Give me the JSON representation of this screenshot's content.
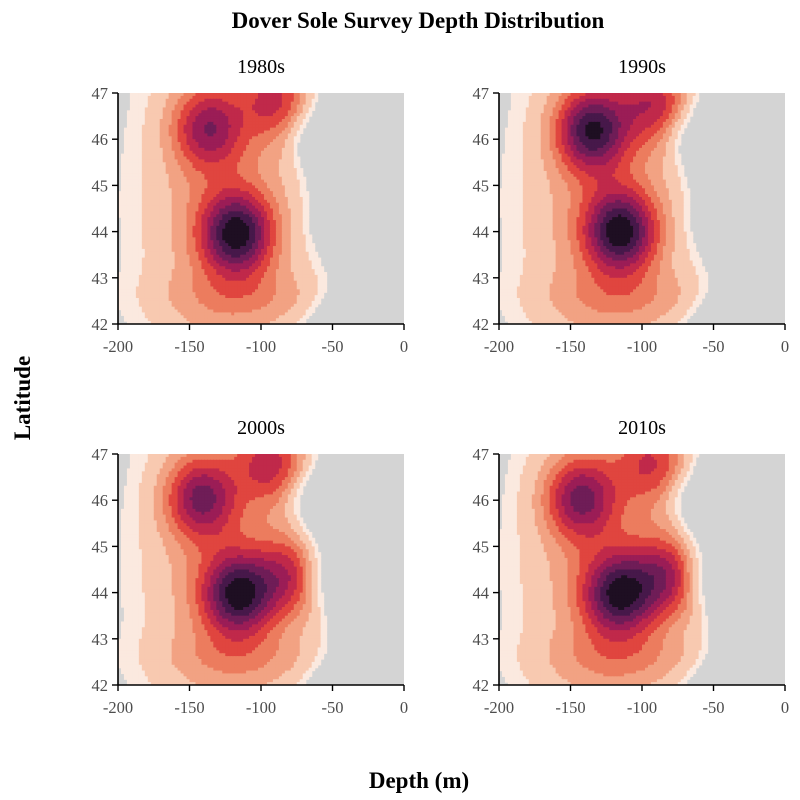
{
  "chart_data": {
    "type": "heatmap",
    "subtype": "filled-contour density",
    "title": "Dover Sole Survey Depth Distribution",
    "xlabel": "Depth (m)",
    "ylabel": "Latitude",
    "xlim": [
      -200,
      0
    ],
    "ylim": [
      42,
      47
    ],
    "xticks": [
      "-200",
      "-150",
      "-100",
      "-50",
      "0"
    ],
    "yticks": [
      "42",
      "43",
      "44",
      "45",
      "46",
      "47"
    ],
    "background_color": "#d4d4d4",
    "contour_levels": 10,
    "colors": [
      "#fbe9df",
      "#f8c9b0",
      "#f2a283",
      "#ec7c5e",
      "#e0453f",
      "#c0294a",
      "#9b1d56",
      "#6f1d57",
      "#47184a",
      "#1e0f22"
    ],
    "panels": [
      {
        "name": "1980s",
        "hotspots": [
          {
            "depth": -117,
            "lat": 43.95,
            "intensity": 1.0
          },
          {
            "depth": -137,
            "lat": 46.25,
            "intensity": 0.65
          },
          {
            "depth": -90,
            "lat": 46.85,
            "intensity": 0.5
          }
        ]
      },
      {
        "name": "1990s",
        "hotspots": [
          {
            "depth": -115,
            "lat": 44.0,
            "intensity": 1.0
          },
          {
            "depth": -135,
            "lat": 46.2,
            "intensity": 0.95
          },
          {
            "depth": -92,
            "lat": 46.8,
            "intensity": 0.55
          }
        ]
      },
      {
        "name": "2000s",
        "hotspots": [
          {
            "depth": -116,
            "lat": 43.95,
            "intensity": 1.0
          },
          {
            "depth": -80,
            "lat": 44.35,
            "intensity": 0.55
          },
          {
            "depth": -142,
            "lat": 46.05,
            "intensity": 0.75
          },
          {
            "depth": -93,
            "lat": 46.8,
            "intensity": 0.55
          }
        ]
      },
      {
        "name": "2010s",
        "hotspots": [
          {
            "depth": -116,
            "lat": 43.95,
            "intensity": 0.9
          },
          {
            "depth": -82,
            "lat": 44.35,
            "intensity": 0.6
          },
          {
            "depth": -143,
            "lat": 46.05,
            "intensity": 0.7
          },
          {
            "depth": -93,
            "lat": 46.8,
            "intensity": 0.45
          }
        ]
      }
    ]
  }
}
